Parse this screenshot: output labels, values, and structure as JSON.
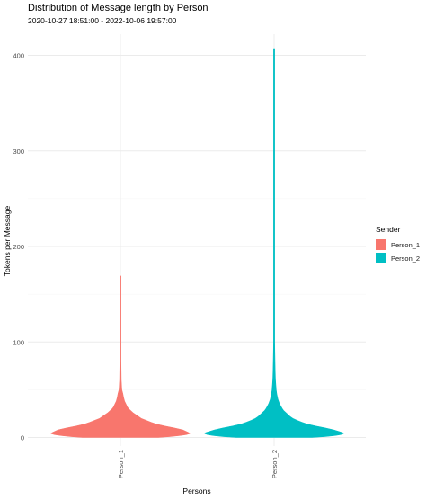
{
  "title": "Distribution of Message length by Person",
  "subtitle": "2020-10-27 18:51:00  -  2022-10-06 19:57:00",
  "chart_data": {
    "type": "violin",
    "title": "Distribution of Message length by Person",
    "subtitle": "2020-10-27 18:51:00  -  2022-10-06 19:57:00",
    "xlabel": "Persons",
    "ylabel": "Tokens per Message",
    "ylim": [
      0,
      420
    ],
    "y_ticks": [
      "0",
      "100",
      "200",
      "300",
      "400"
    ],
    "categories": [
      "Person_1",
      "Person_2"
    ],
    "grid": true,
    "legend": {
      "title": "Sender",
      "position": "right",
      "entries": [
        "Person_1",
        "Person_2"
      ]
    },
    "series": [
      {
        "name": "Person_1",
        "color": "#F8766D",
        "max": 169,
        "profile": [
          [
            0,
            0.55
          ],
          [
            1,
            0.72
          ],
          [
            2,
            0.86
          ],
          [
            3,
            0.95
          ],
          [
            4,
            1.0
          ],
          [
            5,
            0.99
          ],
          [
            6,
            0.96
          ],
          [
            8,
            0.9
          ],
          [
            10,
            0.78
          ],
          [
            12,
            0.64
          ],
          [
            14,
            0.52
          ],
          [
            16,
            0.44
          ],
          [
            18,
            0.37
          ],
          [
            20,
            0.3
          ],
          [
            22,
            0.26
          ],
          [
            24,
            0.22
          ],
          [
            26,
            0.18
          ],
          [
            28,
            0.15
          ],
          [
            30,
            0.12
          ],
          [
            32,
            0.1
          ],
          [
            35,
            0.08
          ],
          [
            38,
            0.06
          ],
          [
            42,
            0.045
          ],
          [
            46,
            0.035
          ],
          [
            50,
            0.02
          ],
          [
            60,
            0.012
          ],
          [
            80,
            0.008
          ],
          [
            110,
            0.006
          ],
          [
            140,
            0.005
          ],
          [
            169,
            0.003
          ]
        ]
      },
      {
        "name": "Person_2",
        "color": "#00BFC4",
        "max": 407,
        "profile": [
          [
            0,
            0.55
          ],
          [
            1,
            0.74
          ],
          [
            2,
            0.88
          ],
          [
            3,
            0.96
          ],
          [
            4,
            1.0
          ],
          [
            5,
            0.99
          ],
          [
            6,
            0.95
          ],
          [
            8,
            0.86
          ],
          [
            10,
            0.74
          ],
          [
            12,
            0.6
          ],
          [
            14,
            0.48
          ],
          [
            16,
            0.4
          ],
          [
            18,
            0.33
          ],
          [
            20,
            0.27
          ],
          [
            22,
            0.23
          ],
          [
            24,
            0.2
          ],
          [
            26,
            0.17
          ],
          [
            28,
            0.14
          ],
          [
            30,
            0.12
          ],
          [
            33,
            0.095
          ],
          [
            36,
            0.075
          ],
          [
            40,
            0.055
          ],
          [
            45,
            0.04
          ],
          [
            50,
            0.03
          ],
          [
            60,
            0.02
          ],
          [
            70,
            0.015
          ],
          [
            90,
            0.01
          ],
          [
            100,
            0.008
          ],
          [
            150,
            0.006
          ],
          [
            250,
            0.005
          ],
          [
            350,
            0.005
          ],
          [
            407,
            0.003
          ]
        ]
      }
    ]
  }
}
